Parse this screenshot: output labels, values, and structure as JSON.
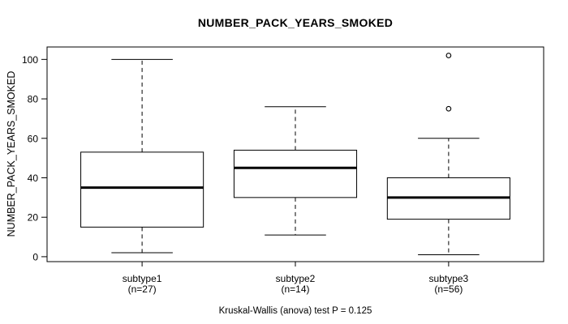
{
  "colors": {
    "line": "#000000",
    "background": "#ffffff"
  },
  "chart_data": {
    "type": "boxplot",
    "title": "NUMBER_PACK_YEARS_SMOKED",
    "ylabel": "NUMBER_PACK_YEARS_SMOKED",
    "xlabel": "",
    "caption": "Kruskal-Wallis (anova) test P = 0.125",
    "ylim": [
      -2.5,
      106.3
    ],
    "yticks": [
      0,
      20,
      40,
      60,
      80,
      100
    ],
    "grid": false,
    "legend": "none",
    "groups": [
      {
        "label": "subtype1",
        "sublabel": "(n=27)",
        "min": 2,
        "q1": 15,
        "median": 35,
        "q3": 53,
        "max": 100,
        "outliers": []
      },
      {
        "label": "subtype2",
        "sublabel": "(n=14)",
        "min": 11,
        "q1": 30,
        "median": 45,
        "q3": 54,
        "max": 76,
        "outliers": []
      },
      {
        "label": "subtype3",
        "sublabel": "(n=56)",
        "min": 1,
        "q1": 19,
        "median": 30,
        "q3": 40,
        "max": 60,
        "outliers": [
          75,
          102
        ]
      }
    ]
  }
}
